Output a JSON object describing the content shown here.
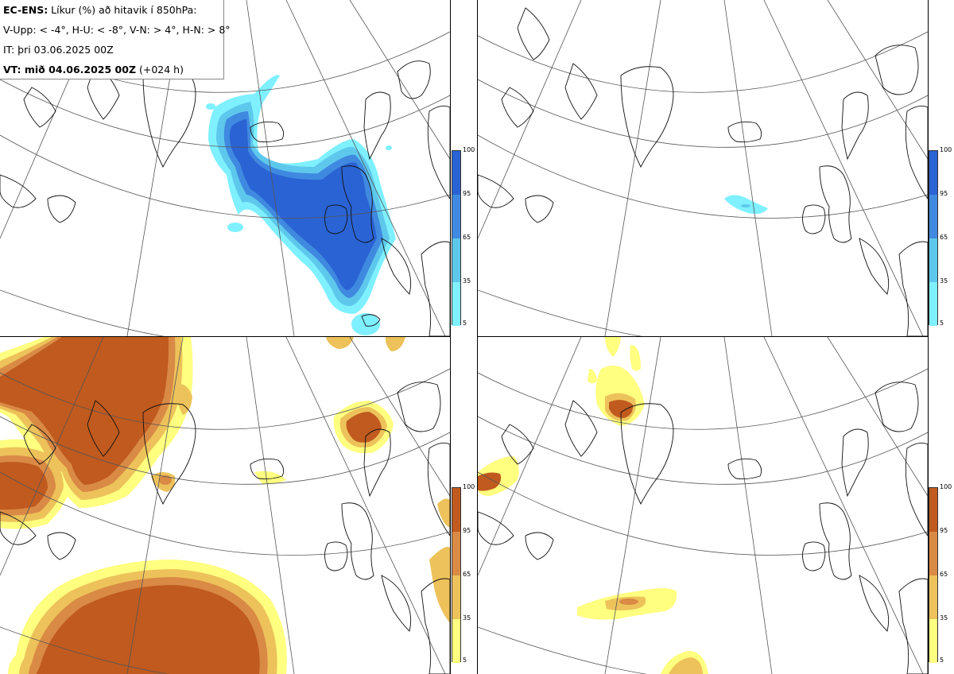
{
  "header": {
    "line1_bold": "EC-ENS:",
    "line1_rest": " Líkur (%) að hitavik í 850hPa:",
    "line2": "V-Upp: < -4°, H-U: < -8°, V-N: > 4°, H-N: > 8°",
    "line3": "IT: þri 03.06.2025 00Z",
    "line4_bold": "VT: mið 04.06.2025 00Z",
    "line4_rest": " (+024 h)"
  },
  "colorbar_cold": {
    "ticks": [
      "100",
      "95",
      "65",
      "35",
      "5"
    ],
    "colors": [
      "#2a63d4",
      "#3f8ae0",
      "#5ec8ec",
      "#7ff0ff"
    ]
  },
  "colorbar_warm": {
    "ticks": [
      "100",
      "95",
      "65",
      "35",
      "5"
    ],
    "colors": [
      "#c05a1e",
      "#d98a45",
      "#edc25a",
      "#ffff80"
    ]
  },
  "panels": [
    {
      "id": "top-left",
      "quantity": "V-Upp"
    },
    {
      "id": "top-right",
      "quantity": "H-U"
    },
    {
      "id": "bottom-left",
      "quantity": "V-N"
    },
    {
      "id": "bottom-right",
      "quantity": "H-N"
    }
  ]
}
